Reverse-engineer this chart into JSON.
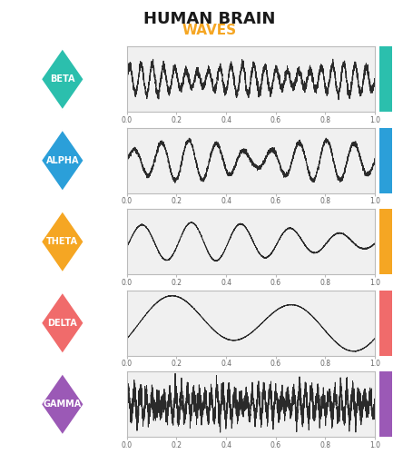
{
  "title_line1": "HUMAN BRAIN",
  "title_line2": "WAVES",
  "title_color": "#1a1a1a",
  "subtitle_color": "#F5A623",
  "waves": [
    {
      "name": "BETA",
      "color": "#2BBFAD",
      "freq": 22,
      "amplitude": 0.55,
      "noise": 0.15,
      "type": "beta"
    },
    {
      "name": "ALPHA",
      "color": "#2B9FD9",
      "freq": 9,
      "amplitude": 0.72,
      "noise": 0.04,
      "type": "alpha"
    },
    {
      "name": "THETA",
      "color": "#F5A623",
      "freq": 5,
      "amplitude": 0.68,
      "noise": 0.01,
      "type": "theta"
    },
    {
      "name": "DELTA",
      "color": "#F06B6B",
      "freq": 2,
      "amplitude": 0.8,
      "noise": 0.005,
      "type": "delta"
    },
    {
      "name": "GAMMA",
      "color": "#9B59B6",
      "freq": 42,
      "amplitude": 0.5,
      "noise": 0.2,
      "type": "gamma"
    }
  ],
  "bg_color": "#FFFFFF",
  "plot_bg": "#F0F0F0",
  "wave_color": "#2a2a2a"
}
